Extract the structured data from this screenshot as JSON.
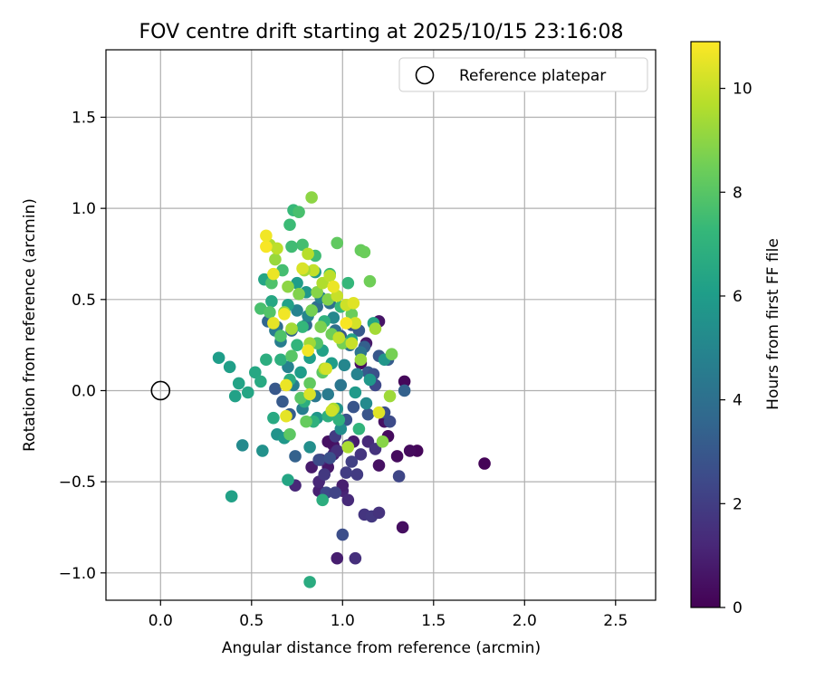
{
  "chart_data": {
    "type": "scatter",
    "title": "FOV centre drift starting at 2025/10/15 23:16:08",
    "xlabel": "Angular distance from reference (arcmin)",
    "ylabel": "Rotation from reference (arcmin)",
    "xlim": [
      -0.3,
      2.72
    ],
    "ylim": [
      -1.15,
      1.87
    ],
    "xticks": [
      "0.0",
      "0.5",
      "1.0",
      "1.5",
      "2.0",
      "2.5"
    ],
    "yticks": [
      "−1.0",
      "−0.5",
      "0.0",
      "0.5",
      "1.0",
      "1.5"
    ],
    "xtick_values": [
      0,
      0.5,
      1.0,
      1.5,
      2.0,
      2.5
    ],
    "ytick_values": [
      -1.0,
      -0.5,
      0,
      0.5,
      1.0,
      1.5
    ],
    "grid": true,
    "legend": {
      "placement": "top-right",
      "entries": [
        "Reference platepar"
      ]
    },
    "reference_point": {
      "label": "Reference platepar",
      "x": 0.0,
      "y": 0.0,
      "marker": "open-circle"
    },
    "colorbar": {
      "label": "Hours from first FF file",
      "range": [
        0,
        10.9
      ],
      "ticks": [
        "0",
        "2",
        "4",
        "6",
        "8",
        "10"
      ],
      "tick_values": [
        0,
        2,
        4,
        6,
        8,
        10
      ],
      "colormap": "viridis"
    },
    "colormap_stops": [
      "#440154",
      "#482878",
      "#3e4989",
      "#31688e",
      "#26828e",
      "#1f9e89",
      "#35b779",
      "#6ece58",
      "#b5de2b",
      "#fde725"
    ],
    "series": [
      {
        "points": [
          [
            1.78,
            -0.4,
            0.1
          ],
          [
            1.41,
            -0.33,
            0.2
          ],
          [
            1.37,
            -0.33,
            0.3
          ],
          [
            1.34,
            0.05,
            0.2
          ],
          [
            1.3,
            -0.36,
            0.3
          ],
          [
            1.33,
            -0.75,
            0.4
          ],
          [
            1.25,
            -0.25,
            0.3
          ],
          [
            1.2,
            -0.41,
            0.5
          ],
          [
            1.2,
            0.38,
            0.6
          ],
          [
            1.23,
            -0.17,
            0.5
          ],
          [
            1.13,
            0.26,
            0.7
          ],
          [
            1.1,
            0.15,
            0.4
          ],
          [
            1.06,
            -0.28,
            0.8
          ],
          [
            0.97,
            -0.92,
            0.9
          ],
          [
            0.95,
            -0.3,
            0.6
          ],
          [
            0.92,
            -0.28,
            0.5
          ],
          [
            0.87,
            -0.55,
            1.0
          ],
          [
            0.87,
            -0.5,
            1.2
          ],
          [
            0.83,
            -0.42,
            0.8
          ],
          [
            1.0,
            -0.55,
            1.1
          ],
          [
            1.03,
            -0.6,
            1.3
          ],
          [
            1.0,
            -0.52,
            0.9
          ],
          [
            0.74,
            -0.52,
            1.2
          ],
          [
            0.92,
            -0.42,
            0.7
          ],
          [
            0.95,
            -0.35,
            1.0
          ],
          [
            1.07,
            -0.92,
            1.5
          ],
          [
            1.12,
            -0.68,
            1.7
          ],
          [
            1.16,
            -0.69,
            1.8
          ],
          [
            1.2,
            -0.67,
            1.6
          ],
          [
            1.08,
            -0.46,
            1.9
          ],
          [
            1.02,
            -0.45,
            2.0
          ],
          [
            0.9,
            -0.46,
            1.8
          ],
          [
            0.88,
            -0.38,
            1.4
          ],
          [
            0.97,
            -0.33,
            1.5
          ],
          [
            1.03,
            -0.3,
            1.8
          ],
          [
            1.14,
            -0.28,
            1.3
          ],
          [
            1.18,
            -0.32,
            1.6
          ],
          [
            1.1,
            -0.35,
            1.7
          ],
          [
            1.05,
            -0.39,
            2.1
          ],
          [
            0.96,
            -0.25,
            1.9
          ],
          [
            1.31,
            -0.47,
            2.3
          ],
          [
            1.26,
            -0.17,
            2.5
          ],
          [
            1.23,
            -0.12,
            2.6
          ],
          [
            1.18,
            0.03,
            2.4
          ],
          [
            1.0,
            -0.79,
            2.6
          ],
          [
            0.91,
            -0.56,
            2.4
          ],
          [
            0.96,
            -0.56,
            2.2
          ],
          [
            0.87,
            -0.38,
            2.5
          ],
          [
            0.93,
            -0.37,
            2.7
          ],
          [
            1.02,
            -0.16,
            2.8
          ],
          [
            1.06,
            -0.09,
            2.9
          ],
          [
            1.14,
            -0.13,
            2.9
          ],
          [
            1.14,
            0.1,
            3.1
          ],
          [
            1.17,
            0.09,
            2.7
          ],
          [
            1.34,
            0.0,
            3.4
          ],
          [
            1.25,
            0.17,
            3.2
          ],
          [
            1.2,
            0.19,
            3.0
          ],
          [
            1.12,
            0.24,
            3.3
          ],
          [
            1.09,
            0.33,
            3.1
          ],
          [
            1.05,
            0.36,
            2.8
          ],
          [
            0.99,
            0.3,
            3.0
          ],
          [
            0.74,
            -0.36,
            3.4
          ],
          [
            0.71,
            -0.13,
            3.2
          ],
          [
            0.67,
            -0.06,
            3.1
          ],
          [
            0.63,
            0.01,
            3.0
          ],
          [
            0.59,
            0.38,
            3.6
          ],
          [
            0.64,
            0.35,
            3.8
          ],
          [
            0.72,
            0.33,
            3.5
          ],
          [
            0.8,
            0.36,
            3.7
          ],
          [
            0.86,
            0.46,
            3.9
          ],
          [
            0.93,
            0.48,
            4.0
          ],
          [
            0.96,
            0.33,
            3.9
          ],
          [
            1.04,
            0.25,
            4.1
          ],
          [
            1.1,
            0.21,
            4.2
          ],
          [
            0.99,
            0.03,
            4.3
          ],
          [
            0.92,
            -0.02,
            4.5
          ],
          [
            0.85,
            -0.03,
            4.4
          ],
          [
            0.78,
            -0.1,
            4.6
          ],
          [
            0.73,
            0.03,
            4.7
          ],
          [
            0.7,
            0.13,
            4.8
          ],
          [
            0.66,
            0.27,
            4.6
          ],
          [
            0.63,
            0.33,
            4.5
          ],
          [
            0.75,
            0.44,
            4.9
          ],
          [
            0.81,
            0.41,
            5.0
          ],
          [
            0.88,
            0.51,
            4.8
          ],
          [
            0.95,
            0.4,
            5.1
          ],
          [
            1.01,
            0.14,
            5.0
          ],
          [
            1.08,
            0.09,
            4.9
          ],
          [
            1.13,
            -0.07,
            5.2
          ],
          [
            0.99,
            -0.21,
            5.3
          ],
          [
            0.82,
            -0.31,
            5.4
          ],
          [
            0.64,
            -0.24,
            5.6
          ],
          [
            0.45,
            -0.3,
            5.2
          ],
          [
            0.56,
            -0.33,
            5.5
          ],
          [
            0.68,
            -0.26,
            5.8
          ],
          [
            0.86,
            -0.15,
            5.7
          ],
          [
            0.97,
            -0.1,
            5.6
          ],
          [
            1.07,
            -0.01,
            5.9
          ],
          [
            1.15,
            0.06,
            5.8
          ],
          [
            1.23,
            0.17,
            5.7
          ],
          [
            0.77,
            0.1,
            6.0
          ],
          [
            0.82,
            0.18,
            6.1
          ],
          [
            0.89,
            0.22,
            6.2
          ],
          [
            0.94,
            0.15,
            6.0
          ],
          [
            1.05,
            0.28,
            6.3
          ],
          [
            1.17,
            0.37,
            6.4
          ],
          [
            0.85,
            0.65,
            5.9
          ],
          [
            0.8,
            0.54,
            5.8
          ],
          [
            0.75,
            0.59,
            6.0
          ],
          [
            0.7,
            0.47,
            6.2
          ],
          [
            0.61,
            0.49,
            6.5
          ],
          [
            0.57,
            0.61,
            6.4
          ],
          [
            0.52,
            0.1,
            6.5
          ],
          [
            0.48,
            -0.01,
            6.4
          ],
          [
            0.43,
            0.04,
            6.3
          ],
          [
            0.41,
            -0.03,
            6.2
          ],
          [
            0.38,
            0.13,
            6.1
          ],
          [
            0.32,
            0.18,
            6.0
          ],
          [
            0.39,
            -0.58,
            6.2
          ],
          [
            0.7,
            -0.49,
            6.4
          ],
          [
            0.82,
            -1.05,
            6.7
          ],
          [
            0.89,
            -0.6,
            6.8
          ],
          [
            0.62,
            -0.15,
            6.6
          ],
          [
            0.55,
            0.05,
            6.6
          ],
          [
            0.58,
            0.17,
            6.8
          ],
          [
            0.66,
            0.17,
            6.9
          ],
          [
            0.71,
            0.06,
            6.7
          ],
          [
            0.79,
            -0.06,
            6.8
          ],
          [
            0.84,
            -0.17,
            7.0
          ],
          [
            0.92,
            -0.14,
            6.9
          ],
          [
            0.98,
            -0.16,
            7.0
          ],
          [
            1.09,
            -0.21,
            7.1
          ],
          [
            0.75,
            0.25,
            7.1
          ],
          [
            0.78,
            0.35,
            7.2
          ],
          [
            0.9,
            0.38,
            7.0
          ],
          [
            0.99,
            0.46,
            7.3
          ],
          [
            1.03,
            0.59,
            7.2
          ],
          [
            0.93,
            0.64,
            7.4
          ],
          [
            0.85,
            0.74,
            7.5
          ],
          [
            0.78,
            0.8,
            7.6
          ],
          [
            0.71,
            0.91,
            7.4
          ],
          [
            0.73,
            0.99,
            7.3
          ],
          [
            0.76,
            0.98,
            7.7
          ],
          [
            0.72,
            0.79,
            7.5
          ],
          [
            0.67,
            0.66,
            7.6
          ],
          [
            0.61,
            0.59,
            7.8
          ],
          [
            0.55,
            0.45,
            7.7
          ],
          [
            0.6,
            0.43,
            7.9
          ],
          [
            0.66,
            0.3,
            7.8
          ],
          [
            0.72,
            0.19,
            8.0
          ],
          [
            0.86,
            0.26,
            7.9
          ],
          [
            0.89,
            0.1,
            8.1
          ],
          [
            0.82,
            0.04,
            8.2
          ],
          [
            0.77,
            -0.04,
            8.0
          ],
          [
            0.71,
            -0.24,
            8.1
          ],
          [
            0.8,
            -0.17,
            8.3
          ],
          [
            0.97,
            0.81,
            8.2
          ],
          [
            1.1,
            0.77,
            8.3
          ],
          [
            1.12,
            0.76,
            8.4
          ],
          [
            1.15,
            0.6,
            8.5
          ],
          [
            1.05,
            0.42,
            8.4
          ],
          [
            1.0,
            0.26,
            8.6
          ],
          [
            0.94,
            0.31,
            8.5
          ],
          [
            0.88,
            0.35,
            8.7
          ],
          [
            0.83,
            0.44,
            8.6
          ],
          [
            0.92,
            0.5,
            8.8
          ],
          [
            0.86,
            0.54,
            8.9
          ],
          [
            0.76,
            0.53,
            8.8
          ],
          [
            0.7,
            0.57,
            9.0
          ],
          [
            0.68,
            0.43,
            9.1
          ],
          [
            1.27,
            0.2,
            8.6
          ],
          [
            1.22,
            -0.28,
            8.9
          ],
          [
            1.26,
            -0.03,
            9.3
          ],
          [
            1.18,
            0.34,
            9.4
          ],
          [
            1.1,
            0.17,
            9.2
          ],
          [
            1.03,
            -0.31,
            9.5
          ],
          [
            0.95,
            -0.1,
            9.6
          ],
          [
            0.9,
            0.12,
            9.5
          ],
          [
            0.82,
            0.26,
            9.3
          ],
          [
            0.72,
            0.34,
            9.4
          ],
          [
            0.63,
            0.72,
            9.2
          ],
          [
            0.6,
            0.8,
            9.6
          ],
          [
            0.64,
            0.78,
            9.8
          ],
          [
            0.81,
            0.75,
            9.7
          ],
          [
            0.84,
            0.66,
            9.9
          ],
          [
            0.79,
            0.66,
            9.4
          ],
          [
            0.89,
            0.59,
            9.6
          ],
          [
            0.93,
            0.63,
            9.8
          ],
          [
            0.97,
            0.52,
            10.0
          ],
          [
            1.02,
            0.47,
            10.1
          ],
          [
            1.07,
            0.37,
            10.2
          ],
          [
            1.05,
            0.26,
            10.0
          ],
          [
            0.98,
            0.29,
            9.9
          ],
          [
            0.91,
            0.12,
            10.2
          ],
          [
            0.82,
            -0.02,
            10.3
          ],
          [
            0.94,
            -0.11,
            10.1
          ],
          [
            1.2,
            -0.12,
            10.4
          ],
          [
            0.69,
            -0.14,
            10.5
          ],
          [
            0.69,
            0.03,
            10.6
          ],
          [
            0.68,
            0.42,
            10.7
          ],
          [
            0.62,
            0.64,
            10.6
          ],
          [
            0.58,
            0.79,
            10.8
          ],
          [
            0.58,
            0.85,
            10.7
          ],
          [
            0.62,
            0.37,
            10.5
          ],
          [
            0.81,
            0.22,
            10.7
          ],
          [
            1.02,
            0.37,
            10.8
          ],
          [
            0.83,
            1.06,
            9.0
          ],
          [
            0.78,
            0.67,
            10.3
          ],
          [
            1.06,
            0.48,
            10.4
          ],
          [
            0.95,
            0.57,
            10.6
          ]
        ]
      }
    ]
  }
}
